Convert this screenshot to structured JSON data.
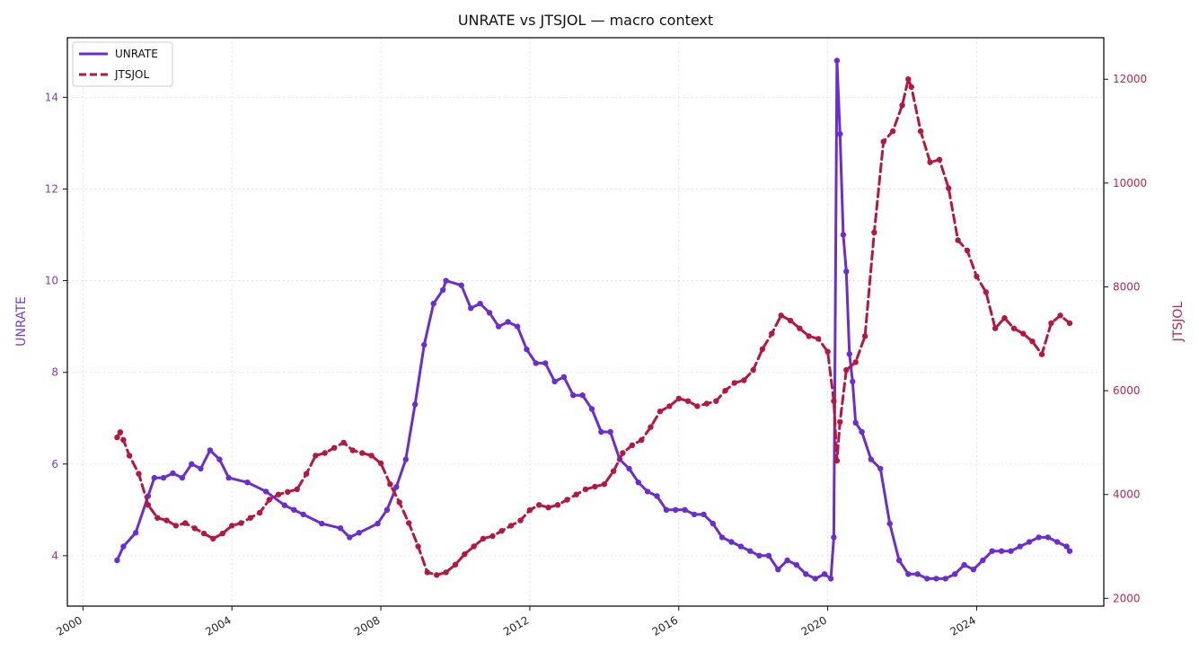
{
  "chart_data": {
    "type": "line",
    "title": "UNRATE vs JTSJOL — macro context",
    "xlabel": "",
    "x_axis": {
      "type": "date",
      "range": [
        "1999-08-01",
        "2027-06-01"
      ],
      "ticks": [
        "2000",
        "2004",
        "2008",
        "2012",
        "2016",
        "2020",
        "2024"
      ],
      "tick_label_rotation": "30deg"
    },
    "y_left": {
      "label": "UNRATE",
      "range": [
        2.9,
        15.3
      ],
      "ticks": [
        "4",
        "6",
        "8",
        "10",
        "12",
        "14"
      ],
      "color": "#7B3FBF"
    },
    "y_right": {
      "label": "JTSJOL",
      "range": [
        1850,
        12800
      ],
      "ticks": [
        "2000",
        "4000",
        "6000",
        "8000",
        "10000",
        "12000"
      ],
      "color": "#B5274E"
    },
    "grid": true,
    "legend": {
      "placement": "top-left"
    },
    "series": [
      {
        "name": "UNRATE",
        "axis": "left",
        "color": "#6A2ED0",
        "style": "solid",
        "marker": "circle",
        "points": [
          [
            "2000-12-01",
            3.9
          ],
          [
            "2001-02-01",
            4.2
          ],
          [
            "2001-06-01",
            4.5
          ],
          [
            "2001-10-01",
            5.3
          ],
          [
            "2001-12-01",
            5.7
          ],
          [
            "2002-03-01",
            5.7
          ],
          [
            "2002-06-01",
            5.8
          ],
          [
            "2002-09-01",
            5.7
          ],
          [
            "2002-12-01",
            6.0
          ],
          [
            "2003-03-01",
            5.9
          ],
          [
            "2003-06-01",
            6.3
          ],
          [
            "2003-09-01",
            6.1
          ],
          [
            "2003-12-01",
            5.7
          ],
          [
            "2004-06-01",
            5.6
          ],
          [
            "2004-12-01",
            5.4
          ],
          [
            "2005-06-01",
            5.1
          ],
          [
            "2005-09-01",
            5.0
          ],
          [
            "2005-12-01",
            4.9
          ],
          [
            "2006-06-01",
            4.7
          ],
          [
            "2006-12-01",
            4.6
          ],
          [
            "2007-03-01",
            4.4
          ],
          [
            "2007-06-01",
            4.5
          ],
          [
            "2007-12-01",
            4.7
          ],
          [
            "2008-03-01",
            5.0
          ],
          [
            "2008-06-01",
            5.5
          ],
          [
            "2008-09-01",
            6.1
          ],
          [
            "2008-12-01",
            7.3
          ],
          [
            "2009-03-01",
            8.6
          ],
          [
            "2009-06-01",
            9.5
          ],
          [
            "2009-09-01",
            9.8
          ],
          [
            "2009-10-01",
            10.0
          ],
          [
            "2010-03-01",
            9.9
          ],
          [
            "2010-06-01",
            9.4
          ],
          [
            "2010-09-01",
            9.5
          ],
          [
            "2010-12-01",
            9.3
          ],
          [
            "2011-03-01",
            9.0
          ],
          [
            "2011-06-01",
            9.1
          ],
          [
            "2011-09-01",
            9.0
          ],
          [
            "2011-12-01",
            8.5
          ],
          [
            "2012-03-01",
            8.2
          ],
          [
            "2012-06-01",
            8.2
          ],
          [
            "2012-09-01",
            7.8
          ],
          [
            "2012-12-01",
            7.9
          ],
          [
            "2013-03-01",
            7.5
          ],
          [
            "2013-06-01",
            7.5
          ],
          [
            "2013-09-01",
            7.2
          ],
          [
            "2013-12-01",
            6.7
          ],
          [
            "2014-03-01",
            6.7
          ],
          [
            "2014-06-01",
            6.1
          ],
          [
            "2014-09-01",
            5.9
          ],
          [
            "2014-12-01",
            5.6
          ],
          [
            "2015-03-01",
            5.4
          ],
          [
            "2015-06-01",
            5.3
          ],
          [
            "2015-09-01",
            5.0
          ],
          [
            "2015-12-01",
            5.0
          ],
          [
            "2016-03-01",
            5.0
          ],
          [
            "2016-06-01",
            4.9
          ],
          [
            "2016-09-01",
            4.9
          ],
          [
            "2016-12-01",
            4.7
          ],
          [
            "2017-03-01",
            4.4
          ],
          [
            "2017-06-01",
            4.3
          ],
          [
            "2017-09-01",
            4.2
          ],
          [
            "2017-12-01",
            4.1
          ],
          [
            "2018-03-01",
            4.0
          ],
          [
            "2018-06-01",
            4.0
          ],
          [
            "2018-09-01",
            3.7
          ],
          [
            "2018-12-01",
            3.9
          ],
          [
            "2019-03-01",
            3.8
          ],
          [
            "2019-06-01",
            3.6
          ],
          [
            "2019-09-01",
            3.5
          ],
          [
            "2019-12-01",
            3.6
          ],
          [
            "2020-02-01",
            3.5
          ],
          [
            "2020-03-01",
            4.4
          ],
          [
            "2020-04-01",
            14.8
          ],
          [
            "2020-05-01",
            13.2
          ],
          [
            "2020-06-01",
            11.0
          ],
          [
            "2020-07-01",
            10.2
          ],
          [
            "2020-08-01",
            8.4
          ],
          [
            "2020-09-01",
            7.8
          ],
          [
            "2020-10-01",
            6.9
          ],
          [
            "2020-12-01",
            6.7
          ],
          [
            "2021-03-01",
            6.1
          ],
          [
            "2021-06-01",
            5.9
          ],
          [
            "2021-09-01",
            4.7
          ],
          [
            "2021-12-01",
            3.9
          ],
          [
            "2022-03-01",
            3.6
          ],
          [
            "2022-06-01",
            3.6
          ],
          [
            "2022-09-01",
            3.5
          ],
          [
            "2022-12-01",
            3.5
          ],
          [
            "2023-03-01",
            3.5
          ],
          [
            "2023-06-01",
            3.6
          ],
          [
            "2023-09-01",
            3.8
          ],
          [
            "2023-12-01",
            3.7
          ],
          [
            "2024-03-01",
            3.9
          ],
          [
            "2024-06-01",
            4.1
          ],
          [
            "2024-09-01",
            4.1
          ],
          [
            "2024-12-01",
            4.1
          ],
          [
            "2025-03-01",
            4.2
          ],
          [
            "2025-06-01",
            4.3
          ],
          [
            "2025-09-01",
            4.4
          ],
          [
            "2025-12-01",
            4.4
          ],
          [
            "2026-03-01",
            4.3
          ],
          [
            "2026-06-01",
            4.2
          ],
          [
            "2026-07-01",
            4.1
          ]
        ]
      },
      {
        "name": "JTSJOL",
        "axis": "right",
        "color": "#B5173F",
        "style": "dashed",
        "marker": "circle",
        "points": [
          [
            "2000-12-01",
            5100
          ],
          [
            "2001-01-01",
            5200
          ],
          [
            "2001-02-01",
            5050
          ],
          [
            "2001-04-01",
            4750
          ],
          [
            "2001-07-01",
            4400
          ],
          [
            "2001-10-01",
            3800
          ],
          [
            "2002-01-01",
            3550
          ],
          [
            "2002-04-01",
            3500
          ],
          [
            "2002-07-01",
            3400
          ],
          [
            "2002-10-01",
            3450
          ],
          [
            "2003-01-01",
            3350
          ],
          [
            "2003-04-01",
            3250
          ],
          [
            "2003-07-01",
            3150
          ],
          [
            "2003-10-01",
            3250
          ],
          [
            "2004-01-01",
            3400
          ],
          [
            "2004-04-01",
            3450
          ],
          [
            "2004-07-01",
            3550
          ],
          [
            "2004-10-01",
            3650
          ],
          [
            "2005-01-01",
            3900
          ],
          [
            "2005-04-01",
            4000
          ],
          [
            "2005-07-01",
            4050
          ],
          [
            "2005-10-01",
            4100
          ],
          [
            "2006-01-01",
            4400
          ],
          [
            "2006-04-01",
            4750
          ],
          [
            "2006-07-01",
            4800
          ],
          [
            "2006-10-01",
            4900
          ],
          [
            "2007-01-01",
            5000
          ],
          [
            "2007-04-01",
            4850
          ],
          [
            "2007-07-01",
            4800
          ],
          [
            "2007-10-01",
            4750
          ],
          [
            "2008-01-01",
            4600
          ],
          [
            "2008-04-01",
            4200
          ],
          [
            "2008-07-01",
            3850
          ],
          [
            "2008-10-01",
            3450
          ],
          [
            "2009-01-01",
            3000
          ],
          [
            "2009-04-01",
            2500
          ],
          [
            "2009-07-01",
            2450
          ],
          [
            "2009-10-01",
            2500
          ],
          [
            "2010-01-01",
            2650
          ],
          [
            "2010-04-01",
            2850
          ],
          [
            "2010-07-01",
            3000
          ],
          [
            "2010-10-01",
            3150
          ],
          [
            "2011-01-01",
            3200
          ],
          [
            "2011-04-01",
            3300
          ],
          [
            "2011-07-01",
            3400
          ],
          [
            "2011-10-01",
            3500
          ],
          [
            "2012-01-01",
            3700
          ],
          [
            "2012-04-01",
            3800
          ],
          [
            "2012-07-01",
            3750
          ],
          [
            "2012-10-01",
            3800
          ],
          [
            "2013-01-01",
            3900
          ],
          [
            "2013-04-01",
            4000
          ],
          [
            "2013-07-01",
            4100
          ],
          [
            "2013-10-01",
            4150
          ],
          [
            "2014-01-01",
            4200
          ],
          [
            "2014-04-01",
            4450
          ],
          [
            "2014-07-01",
            4800
          ],
          [
            "2014-10-01",
            4950
          ],
          [
            "2015-01-01",
            5050
          ],
          [
            "2015-04-01",
            5300
          ],
          [
            "2015-07-01",
            5600
          ],
          [
            "2015-10-01",
            5700
          ],
          [
            "2016-01-01",
            5850
          ],
          [
            "2016-04-01",
            5800
          ],
          [
            "2016-07-01",
            5700
          ],
          [
            "2016-10-01",
            5750
          ],
          [
            "2017-01-01",
            5800
          ],
          [
            "2017-04-01",
            6000
          ],
          [
            "2017-07-01",
            6150
          ],
          [
            "2017-10-01",
            6200
          ],
          [
            "2018-01-01",
            6400
          ],
          [
            "2018-04-01",
            6800
          ],
          [
            "2018-07-01",
            7100
          ],
          [
            "2018-10-01",
            7450
          ],
          [
            "2019-01-01",
            7350
          ],
          [
            "2019-04-01",
            7200
          ],
          [
            "2019-07-01",
            7050
          ],
          [
            "2019-10-01",
            7000
          ],
          [
            "2020-01-01",
            6750
          ],
          [
            "2020-03-01",
            5800
          ],
          [
            "2020-04-01",
            4650
          ],
          [
            "2020-05-01",
            5400
          ],
          [
            "2020-07-01",
            6400
          ],
          [
            "2020-10-01",
            6550
          ],
          [
            "2021-01-01",
            7050
          ],
          [
            "2021-04-01",
            9050
          ],
          [
            "2021-07-01",
            10800
          ],
          [
            "2021-10-01",
            11000
          ],
          [
            "2022-01-01",
            11500
          ],
          [
            "2022-03-01",
            12000
          ],
          [
            "2022-04-01",
            11850
          ],
          [
            "2022-07-01",
            11000
          ],
          [
            "2022-10-01",
            10400
          ],
          [
            "2023-01-01",
            10450
          ],
          [
            "2023-04-01",
            9900
          ],
          [
            "2023-07-01",
            8900
          ],
          [
            "2023-10-01",
            8700
          ],
          [
            "2024-01-01",
            8200
          ],
          [
            "2024-04-01",
            7900
          ],
          [
            "2024-07-01",
            7200
          ],
          [
            "2024-10-01",
            7400
          ],
          [
            "2025-01-01",
            7200
          ],
          [
            "2025-04-01",
            7100
          ],
          [
            "2025-07-01",
            6950
          ],
          [
            "2025-10-01",
            6700
          ],
          [
            "2026-01-01",
            7300
          ],
          [
            "2026-04-01",
            7450
          ],
          [
            "2026-07-01",
            7300
          ]
        ]
      }
    ]
  }
}
